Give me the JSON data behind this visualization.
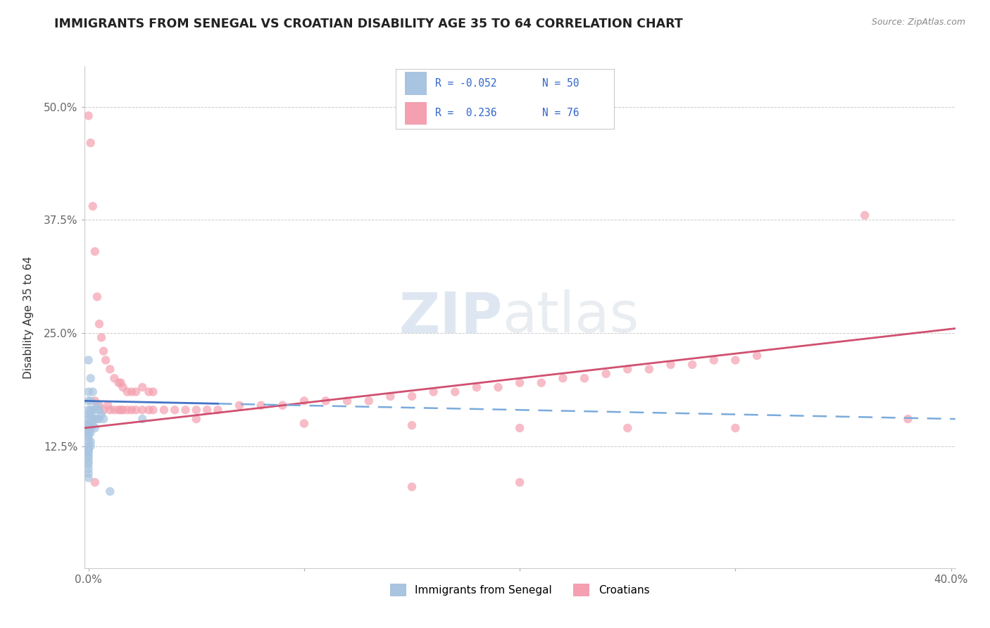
{
  "title": "IMMIGRANTS FROM SENEGAL VS CROATIAN DISABILITY AGE 35 TO 64 CORRELATION CHART",
  "source": "Source: ZipAtlas.com",
  "ylabel": "Disability Age 35 to 64",
  "xlabel": "",
  "xlim": [
    -0.002,
    0.402
  ],
  "ylim": [
    -0.01,
    0.545
  ],
  "xticks": [
    0.0,
    0.1,
    0.2,
    0.3,
    0.4
  ],
  "xticklabels": [
    "0.0%",
    "",
    "",
    "",
    "40.0%"
  ],
  "yticks": [
    0.125,
    0.25,
    0.375,
    0.5
  ],
  "yticklabels": [
    "12.5%",
    "25.0%",
    "37.5%",
    "50.0%"
  ],
  "color_senegal": "#a8c4e0",
  "color_croatian": "#f4a0b0",
  "trendline_senegal_solid": "#4472c4",
  "trendline_senegal_dashed": "#7aabdb",
  "trendline_croatian": "#d05070",
  "legend_label1": "Immigrants from Senegal",
  "legend_label2": "Croatians",
  "senegal_points": [
    [
      0.0,
      0.22
    ],
    [
      0.0,
      0.185
    ],
    [
      0.0,
      0.175
    ],
    [
      0.0,
      0.165
    ],
    [
      0.0,
      0.16
    ],
    [
      0.0,
      0.155
    ],
    [
      0.0,
      0.15
    ],
    [
      0.0,
      0.148
    ],
    [
      0.0,
      0.145
    ],
    [
      0.0,
      0.142
    ],
    [
      0.0,
      0.14
    ],
    [
      0.0,
      0.138
    ],
    [
      0.0,
      0.135
    ],
    [
      0.0,
      0.13
    ],
    [
      0.0,
      0.125
    ],
    [
      0.0,
      0.122
    ],
    [
      0.0,
      0.12
    ],
    [
      0.0,
      0.118
    ],
    [
      0.0,
      0.115
    ],
    [
      0.0,
      0.112
    ],
    [
      0.0,
      0.108
    ],
    [
      0.0,
      0.105
    ],
    [
      0.0,
      0.1
    ],
    [
      0.0,
      0.095
    ],
    [
      0.0,
      0.09
    ],
    [
      0.001,
      0.2
    ],
    [
      0.001,
      0.175
    ],
    [
      0.001,
      0.165
    ],
    [
      0.001,
      0.16
    ],
    [
      0.001,
      0.155
    ],
    [
      0.001,
      0.15
    ],
    [
      0.001,
      0.145
    ],
    [
      0.001,
      0.14
    ],
    [
      0.001,
      0.13
    ],
    [
      0.001,
      0.125
    ],
    [
      0.002,
      0.185
    ],
    [
      0.002,
      0.165
    ],
    [
      0.002,
      0.155
    ],
    [
      0.002,
      0.148
    ],
    [
      0.003,
      0.165
    ],
    [
      0.003,
      0.155
    ],
    [
      0.003,
      0.145
    ],
    [
      0.004,
      0.17
    ],
    [
      0.004,
      0.155
    ],
    [
      0.005,
      0.165
    ],
    [
      0.005,
      0.155
    ],
    [
      0.006,
      0.16
    ],
    [
      0.007,
      0.155
    ],
    [
      0.01,
      0.075
    ],
    [
      0.025,
      0.155
    ]
  ],
  "croatian_points": [
    [
      0.0,
      0.49
    ],
    [
      0.001,
      0.46
    ],
    [
      0.002,
      0.39
    ],
    [
      0.003,
      0.34
    ],
    [
      0.004,
      0.29
    ],
    [
      0.005,
      0.26
    ],
    [
      0.006,
      0.245
    ],
    [
      0.007,
      0.23
    ],
    [
      0.008,
      0.22
    ],
    [
      0.01,
      0.21
    ],
    [
      0.012,
      0.2
    ],
    [
      0.014,
      0.195
    ],
    [
      0.015,
      0.195
    ],
    [
      0.016,
      0.19
    ],
    [
      0.018,
      0.185
    ],
    [
      0.02,
      0.185
    ],
    [
      0.022,
      0.185
    ],
    [
      0.025,
      0.19
    ],
    [
      0.028,
      0.185
    ],
    [
      0.03,
      0.185
    ],
    [
      0.003,
      0.175
    ],
    [
      0.005,
      0.17
    ],
    [
      0.007,
      0.165
    ],
    [
      0.009,
      0.17
    ],
    [
      0.01,
      0.165
    ],
    [
      0.012,
      0.165
    ],
    [
      0.014,
      0.165
    ],
    [
      0.015,
      0.165
    ],
    [
      0.016,
      0.165
    ],
    [
      0.018,
      0.165
    ],
    [
      0.02,
      0.165
    ],
    [
      0.022,
      0.165
    ],
    [
      0.025,
      0.165
    ],
    [
      0.028,
      0.165
    ],
    [
      0.03,
      0.165
    ],
    [
      0.035,
      0.165
    ],
    [
      0.04,
      0.165
    ],
    [
      0.045,
      0.165
    ],
    [
      0.05,
      0.165
    ],
    [
      0.055,
      0.165
    ],
    [
      0.06,
      0.165
    ],
    [
      0.07,
      0.17
    ],
    [
      0.08,
      0.17
    ],
    [
      0.09,
      0.17
    ],
    [
      0.1,
      0.175
    ],
    [
      0.11,
      0.175
    ],
    [
      0.12,
      0.175
    ],
    [
      0.13,
      0.175
    ],
    [
      0.14,
      0.18
    ],
    [
      0.15,
      0.18
    ],
    [
      0.16,
      0.185
    ],
    [
      0.17,
      0.185
    ],
    [
      0.18,
      0.19
    ],
    [
      0.19,
      0.19
    ],
    [
      0.2,
      0.195
    ],
    [
      0.21,
      0.195
    ],
    [
      0.22,
      0.2
    ],
    [
      0.23,
      0.2
    ],
    [
      0.24,
      0.205
    ],
    [
      0.25,
      0.21
    ],
    [
      0.26,
      0.21
    ],
    [
      0.27,
      0.215
    ],
    [
      0.28,
      0.215
    ],
    [
      0.29,
      0.22
    ],
    [
      0.3,
      0.22
    ],
    [
      0.31,
      0.225
    ],
    [
      0.05,
      0.155
    ],
    [
      0.1,
      0.15
    ],
    [
      0.15,
      0.148
    ],
    [
      0.2,
      0.145
    ],
    [
      0.25,
      0.145
    ],
    [
      0.3,
      0.145
    ],
    [
      0.36,
      0.38
    ],
    [
      0.38,
      0.155
    ],
    [
      0.003,
      0.085
    ],
    [
      0.15,
      0.08
    ],
    [
      0.2,
      0.085
    ]
  ],
  "trendline_croatian_y0": 0.145,
  "trendline_croatian_y1": 0.255,
  "trendline_senegal_y0": 0.175,
  "trendline_senegal_y1": 0.155,
  "trendline_senegal_x_solid_end": 0.06
}
